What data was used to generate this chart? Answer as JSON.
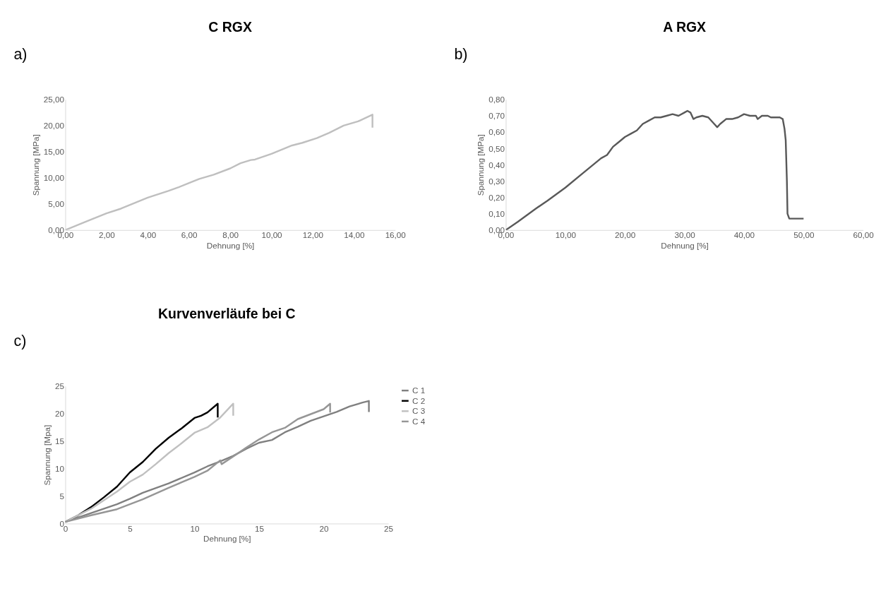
{
  "chart_data": [
    {
      "type": "line",
      "title": "C RGX",
      "xlabel": "Dehnung [%]",
      "ylabel": "Spannung [MPa]",
      "annotations": [
        "a)"
      ],
      "grid": false,
      "legend": false,
      "xlim": [
        0,
        16
      ],
      "xticks": [
        {
          "value": 0,
          "label": "0,00"
        },
        {
          "value": 2,
          "label": "2,00"
        },
        {
          "value": 4,
          "label": "4,00"
        },
        {
          "value": 6,
          "label": "6,00"
        },
        {
          "value": 8,
          "label": "8,00"
        },
        {
          "value": 10,
          "label": "10,00"
        },
        {
          "value": 12,
          "label": "12,00"
        },
        {
          "value": 14,
          "label": "14,00"
        },
        {
          "value": 16,
          "label": "16,00"
        }
      ],
      "ylim": [
        0,
        25
      ],
      "yticks": [
        {
          "value": 0,
          "label": "0,00"
        },
        {
          "value": 5,
          "label": "5,00"
        },
        {
          "value": 10,
          "label": "10,00"
        },
        {
          "value": 15,
          "label": "15,00"
        },
        {
          "value": 20,
          "label": "20,00"
        },
        {
          "value": 25,
          "label": "25,00"
        }
      ],
      "series": [
        {
          "color": "#bfbfbf",
          "x": [
            0,
            1,
            2,
            2.7,
            4,
            5,
            5.5,
            6.5,
            7.2,
            8,
            8.5,
            9,
            9.2,
            10,
            11,
            11.5,
            12.2,
            12.8,
            13.5,
            14.2,
            14.9,
            14.9
          ],
          "values": [
            0,
            1.6,
            3.2,
            4.1,
            6.2,
            7.5,
            8.2,
            9.8,
            10.6,
            11.8,
            12.8,
            13.4,
            13.5,
            14.6,
            16.2,
            16.7,
            17.6,
            18.6,
            20,
            20.8,
            22.1,
            19.6
          ]
        }
      ]
    },
    {
      "type": "line",
      "title": "A RGX",
      "xlabel": "Dehnung [%]",
      "ylabel": "Spannung [MPa]",
      "annotations": [
        "b)"
      ],
      "grid": false,
      "legend": false,
      "xlim": [
        0,
        60
      ],
      "xticks": [
        {
          "value": 0,
          "label": "0,00"
        },
        {
          "value": 10,
          "label": "10,00"
        },
        {
          "value": 20,
          "label": "20,00"
        },
        {
          "value": 30,
          "label": "30,00"
        },
        {
          "value": 40,
          "label": "40,00"
        },
        {
          "value": 50,
          "label": "50,00"
        },
        {
          "value": 60,
          "label": "60,00"
        }
      ],
      "ylim": [
        0,
        0.8
      ],
      "yticks": [
        {
          "value": 0,
          "label": "0,00"
        },
        {
          "value": 0.1,
          "label": "0,10"
        },
        {
          "value": 0.2,
          "label": "0,20"
        },
        {
          "value": 0.3,
          "label": "0,30"
        },
        {
          "value": 0.4,
          "label": "0,40"
        },
        {
          "value": 0.5,
          "label": "0,50"
        },
        {
          "value": 0.6,
          "label": "0,60"
        },
        {
          "value": 0.7,
          "label": "0,70"
        },
        {
          "value": 0.8,
          "label": "0,80"
        }
      ],
      "series": [
        {
          "color": "#595959",
          "x": [
            0,
            2,
            5,
            7,
            10,
            13,
            16,
            17,
            18,
            19,
            20,
            21,
            22,
            23,
            24,
            25,
            26,
            27,
            28,
            29,
            30,
            30.5,
            31,
            31.5,
            32,
            33,
            34,
            35,
            35.5,
            36,
            37,
            38,
            39,
            40,
            41,
            42,
            42.3,
            43,
            44,
            44.5,
            46,
            46.5,
            46.8,
            47,
            47.2,
            47.3,
            47.6,
            50
          ],
          "values": [
            0,
            0.05,
            0.13,
            0.18,
            0.26,
            0.35,
            0.44,
            0.46,
            0.51,
            0.54,
            0.57,
            0.59,
            0.61,
            0.65,
            0.67,
            0.69,
            0.69,
            0.7,
            0.71,
            0.7,
            0.72,
            0.73,
            0.72,
            0.68,
            0.69,
            0.7,
            0.69,
            0.65,
            0.63,
            0.65,
            0.68,
            0.68,
            0.69,
            0.71,
            0.7,
            0.7,
            0.68,
            0.7,
            0.7,
            0.69,
            0.69,
            0.68,
            0.62,
            0.55,
            0.3,
            0.1,
            0.07,
            0.07
          ]
        }
      ]
    },
    {
      "type": "line",
      "title": "Kurvenverläufe bei C",
      "xlabel": "Dehnung [%]",
      "ylabel": "Spannung  [Mpa]",
      "annotations": [
        "c)"
      ],
      "grid": false,
      "legend": "right",
      "xlim": [
        0,
        25
      ],
      "xticks": [
        0,
        5,
        10,
        15,
        20,
        25
      ],
      "ylim": [
        0,
        25
      ],
      "yticks": [
        0,
        5,
        10,
        15,
        20,
        25
      ],
      "series": [
        {
          "name": "C 1",
          "color": "#808080",
          "x": [
            0,
            2,
            4,
            5,
            6,
            8,
            10,
            11,
            12,
            13,
            14,
            15,
            16,
            17,
            18,
            19,
            20,
            21,
            22,
            23,
            23.5,
            23.5
          ],
          "values": [
            0.3,
            1.9,
            3.5,
            4.5,
            5.6,
            7.3,
            9.3,
            10.4,
            11.3,
            12.3,
            13.6,
            14.7,
            15.2,
            16.6,
            17.6,
            18.7,
            19.5,
            20.3,
            21.3,
            22,
            22.3,
            20.3
          ]
        },
        {
          "name": "C 2",
          "color": "#000000",
          "x": [
            0,
            1,
            2,
            3,
            4,
            5,
            6,
            7,
            8,
            9,
            10,
            10.5,
            11,
            11.8,
            11.8
          ],
          "values": [
            0.3,
            1.5,
            3,
            4.8,
            6.7,
            9.3,
            11.2,
            13.6,
            15.6,
            17.3,
            19.2,
            19.6,
            20.2,
            21.8,
            19.3
          ]
        },
        {
          "name": "C 3",
          "color": "#c0c0c0",
          "x": [
            0,
            2,
            4,
            5,
            6,
            7,
            8,
            9,
            10,
            11,
            12,
            13,
            13
          ],
          "values": [
            0.3,
            2.7,
            5.8,
            7.6,
            8.9,
            10.8,
            12.8,
            14.6,
            16.5,
            17.5,
            19.3,
            21.8,
            19.6
          ]
        },
        {
          "name": "C 4",
          "color": "#969696",
          "x": [
            0,
            2,
            4,
            6,
            8,
            10,
            11,
            12,
            12.1,
            13,
            14,
            15,
            16,
            17,
            18,
            19,
            20,
            20.5,
            20.5
          ],
          "values": [
            0.3,
            1.5,
            2.6,
            4.4,
            6.5,
            8.5,
            9.6,
            11.5,
            10.8,
            12.2,
            13.8,
            15.3,
            16.6,
            17.4,
            19,
            19.9,
            20.8,
            21.8,
            20.2
          ]
        }
      ]
    }
  ]
}
